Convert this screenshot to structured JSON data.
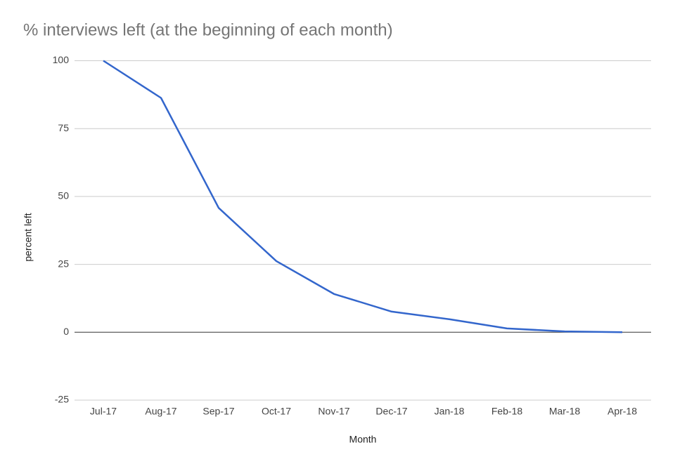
{
  "chart_data": {
    "type": "line",
    "title": "% interviews left (at the beginning of each month)",
    "x_label": "Month",
    "y_label": "percent left",
    "categories": [
      "Jul-17",
      "Aug-17",
      "Sep-17",
      "Oct-17",
      "Nov-17",
      "Dec-17",
      "Jan-18",
      "Feb-18",
      "Mar-18",
      "Apr-18"
    ],
    "series": [
      {
        "name": "percent left",
        "color": "#3366cc",
        "values": [
          100,
          86.3,
          45.8,
          26.2,
          14.1,
          7.6,
          4.8,
          1.4,
          0.3,
          0
        ]
      }
    ],
    "ylim": [
      -25,
      100
    ],
    "yticks": [
      -25,
      0,
      25,
      50,
      75,
      100
    ],
    "grid": true
  }
}
